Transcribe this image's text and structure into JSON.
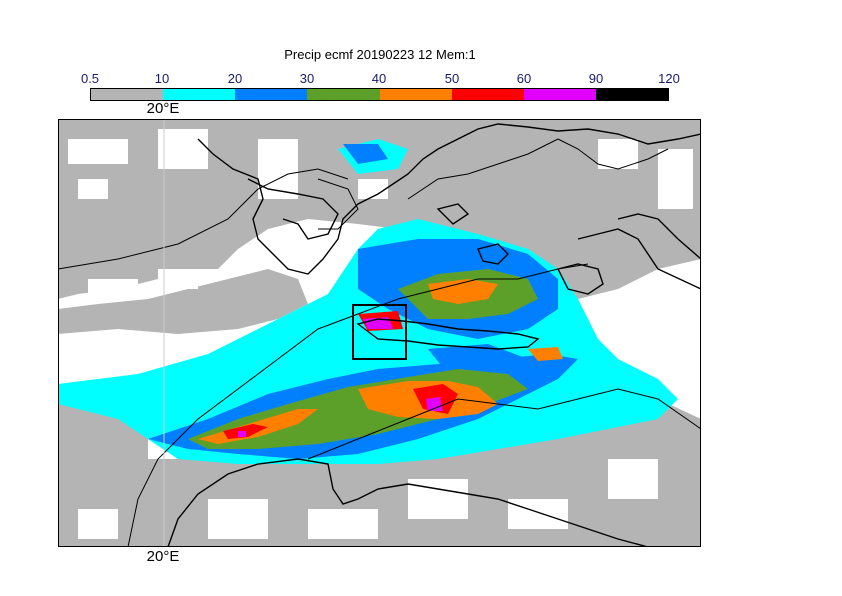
{
  "title": "Precip ecmf 20190223 12 Mem:1",
  "colorbar": {
    "ticks": [
      "0.5",
      "10",
      "20",
      "30",
      "40",
      "50",
      "60",
      "90",
      "120"
    ],
    "colors": [
      "#b4b4b4",
      "#00ffff",
      "#0080ff",
      "#5ca02a",
      "#ff8000",
      "#ff0000",
      "#e100ff",
      "#000000"
    ]
  },
  "lon_label_top": "20°E",
  "lon_label_bottom": "20°E"
}
